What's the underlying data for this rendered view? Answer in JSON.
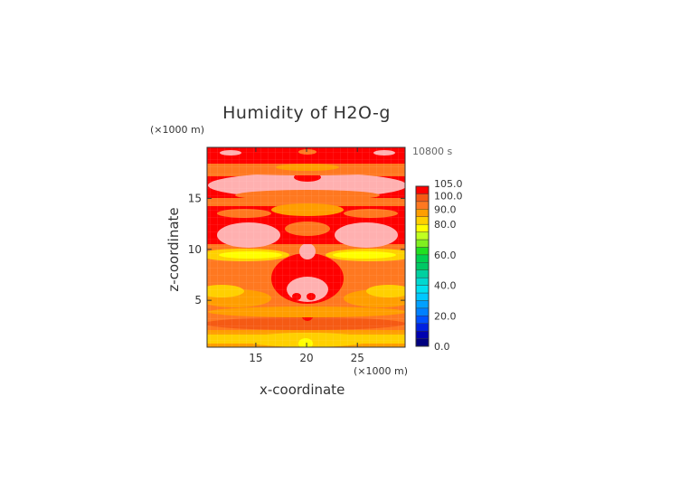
{
  "chart_data": {
    "type": "heatmap",
    "title": "Humidity of H2O-g",
    "time": "10800 s",
    "xlabel": "x-coordinate",
    "ylabel": "z-coordinate",
    "x_scale": "(×1000 m)",
    "y_scale": "(×1000 m)",
    "x_ticks": [
      15,
      20,
      25
    ],
    "y_ticks": [
      5,
      10,
      15
    ],
    "xlim": [
      10.2,
      29.7
    ],
    "ylim": [
      0.4,
      20.0
    ],
    "grid": true,
    "colorbar": {
      "levels": [
        0,
        5,
        10,
        15,
        20,
        25,
        30,
        35,
        40,
        45,
        50,
        55,
        60,
        65,
        70,
        75,
        80,
        85,
        90,
        95,
        100,
        105
      ],
      "colors": [
        "#000080",
        "#0000b0",
        "#0020e0",
        "#0050ff",
        "#0080ff",
        "#00a0ff",
        "#00c8ff",
        "#00e0f0",
        "#00d8d0",
        "#00d0a0",
        "#00c864",
        "#00d050",
        "#20e020",
        "#80f020",
        "#c0ff20",
        "#ffff00",
        "#ffd000",
        "#ff9e00",
        "#ff7820",
        "#f55a14",
        "#ff0000",
        "#ffffff"
      ],
      "tick_labels": [
        "0.0",
        "20.0",
        "40.0",
        "60.0",
        "80.0",
        "90.0",
        "100.0",
        "105.0"
      ]
    },
    "field_description": "mostly 85-100 with bands above 100 near the top and yellow (75-80) band at z~9"
  }
}
